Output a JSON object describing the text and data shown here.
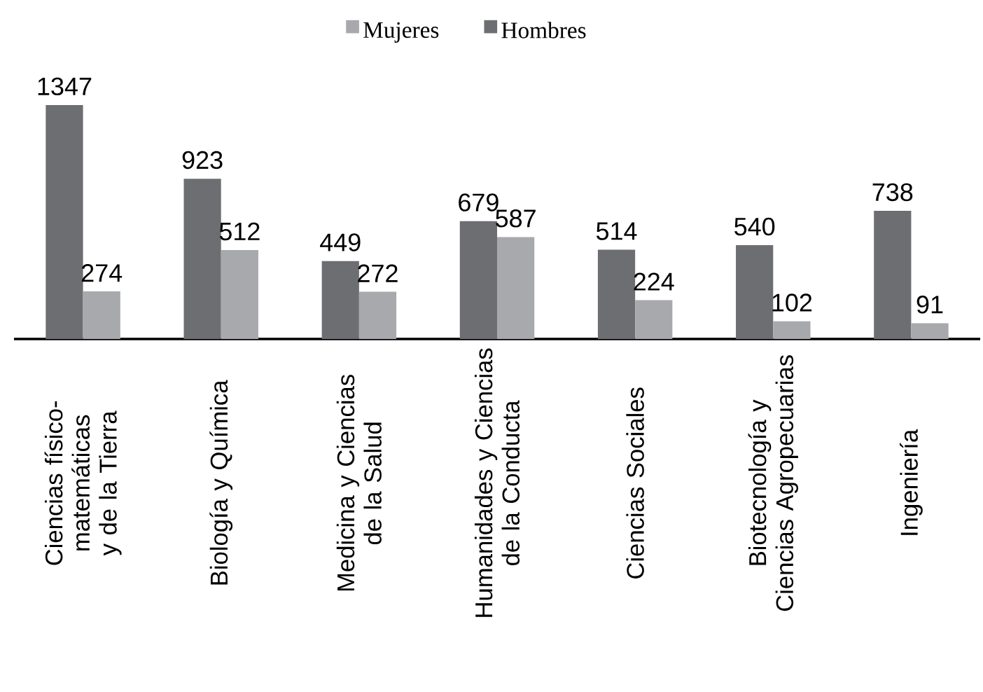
{
  "chart_data": {
    "type": "bar",
    "categories": [
      "Ciencias físico-matemáticas y de la Tierra",
      "Biología y Química",
      "Medicina y Ciencias de la Salud",
      "Humanidades y Ciencias de la Conducta",
      "Ciencias Sociales",
      "Biotecnología y Ciencias Agropecuarias",
      "Ingeniería"
    ],
    "series": [
      {
        "name": "Hombres",
        "color": "#6d6e71",
        "values": [
          1347,
          923,
          449,
          679,
          514,
          540,
          738
        ]
      },
      {
        "name": "Mujeres",
        "color": "#a7a9ac",
        "values": [
          274,
          512,
          272,
          587,
          224,
          102,
          91
        ]
      }
    ],
    "data_labels": true,
    "legend": "top"
  }
}
